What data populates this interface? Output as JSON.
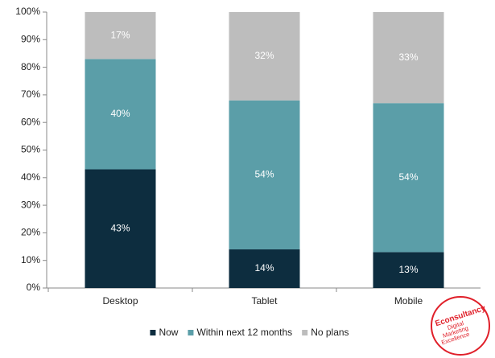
{
  "chart_data": {
    "type": "stacked_bar",
    "categories": [
      "Desktop",
      "Tablet",
      "Mobile"
    ],
    "series": [
      {
        "name": "Now",
        "color": "#0d2d3f",
        "values": [
          43,
          14,
          13
        ],
        "value_labels": [
          "43%",
          "14%",
          "13%"
        ]
      },
      {
        "name": "Within next 12 months",
        "color": "#5b9ea8",
        "values": [
          40,
          54,
          54
        ],
        "value_labels": [
          "40%",
          "54%",
          "54%"
        ]
      },
      {
        "name": "No plans",
        "color": "#bdbdbd",
        "values": [
          17,
          32,
          33
        ],
        "value_labels": [
          "17%",
          "32%",
          "33%"
        ]
      }
    ],
    "ylim": [
      0,
      100
    ],
    "yticks": [
      {
        "value": 0,
        "label": "0%"
      },
      {
        "value": 10,
        "label": "10%"
      },
      {
        "value": 20,
        "label": "20%"
      },
      {
        "value": 30,
        "label": "30%"
      },
      {
        "value": 40,
        "label": "40%"
      },
      {
        "value": 50,
        "label": "50%"
      },
      {
        "value": 60,
        "label": "60%"
      },
      {
        "value": 70,
        "label": "70%"
      },
      {
        "value": 80,
        "label": "80%"
      },
      {
        "value": 90,
        "label": "90%"
      },
      {
        "value": 100,
        "label": "100%"
      }
    ],
    "grid": false,
    "legend": "bottom",
    "logo": {
      "name": "Econsultancy",
      "tagline": [
        "Digital",
        "Marketing",
        "Excellence"
      ]
    }
  }
}
